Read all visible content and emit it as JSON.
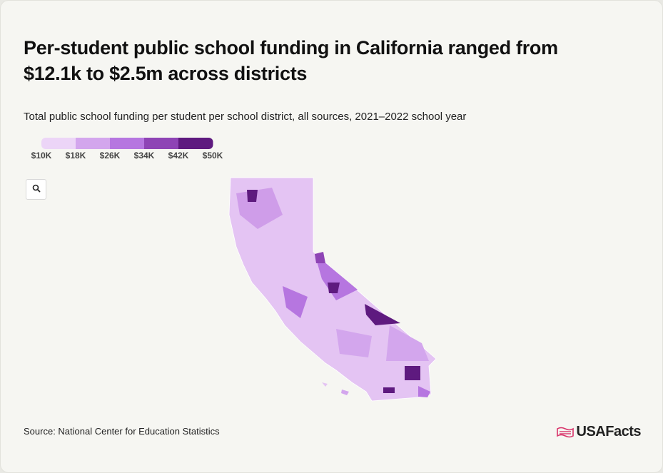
{
  "header": {
    "title": "Per-student public school funding in California ranged from $12.1k to $2.5m across districts",
    "subtitle": "Total public school funding per student per school district, all sources, 2021–2022 school year"
  },
  "legend": {
    "colors": [
      "#ecd5f7",
      "#d3a6ed",
      "#b676e0",
      "#8e44b5",
      "#5e1a7f"
    ],
    "ticks": [
      {
        "value": 10000,
        "label": "$10K"
      },
      {
        "value": 18000,
        "label": "$18K"
      },
      {
        "value": 26000,
        "label": "$26K"
      },
      {
        "value": 34000,
        "label": "$34K"
      },
      {
        "value": 42000,
        "label": "$42K"
      },
      {
        "value": 50000,
        "label": "$50K"
      }
    ]
  },
  "footer": {
    "source": "Source: National Center for Education Statistics",
    "logo": "USAFacts"
  }
}
